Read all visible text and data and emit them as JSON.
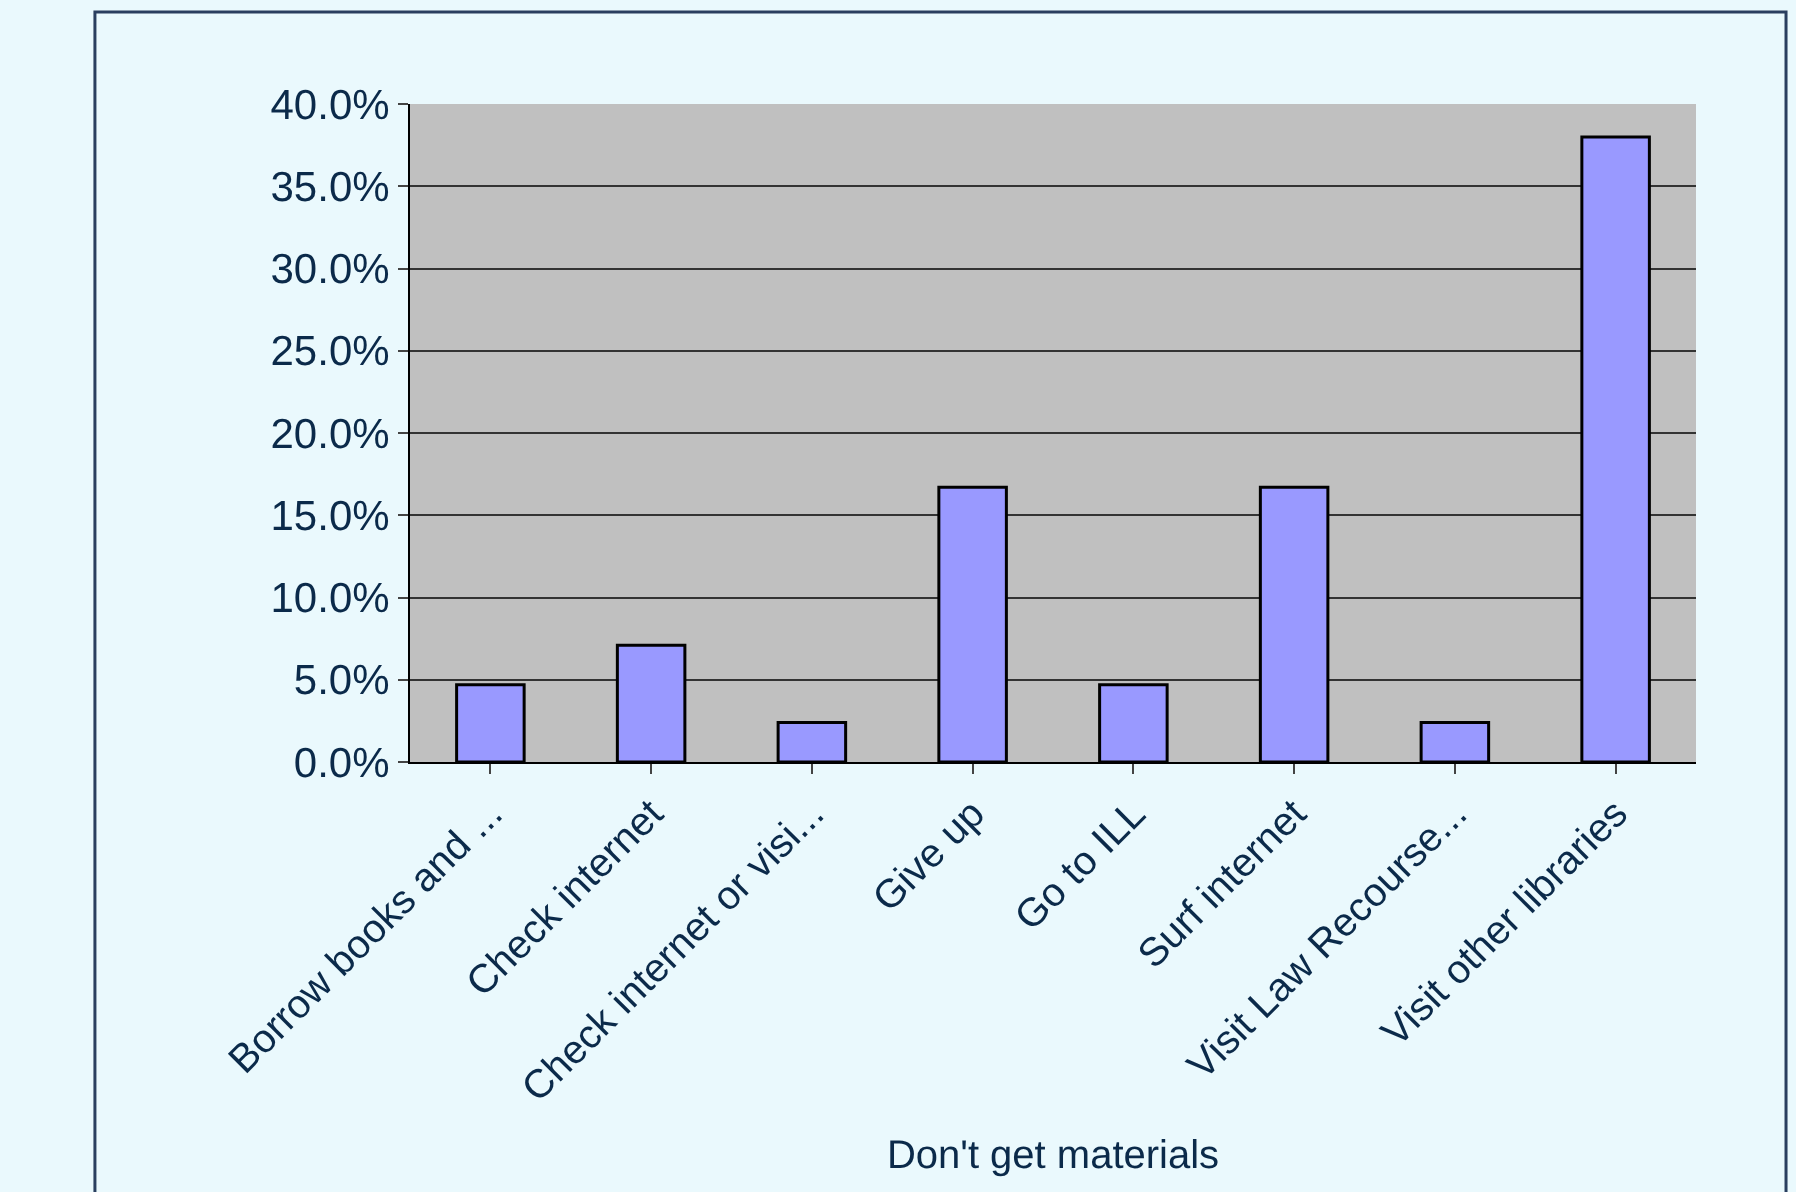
{
  "chart_data": {
    "type": "bar",
    "xlabel": "Don't get materials",
    "categories": [
      "Borrow books and ...",
      "Check internet",
      "Check internet or visi...",
      "Give up",
      "Go to ILL",
      "Surf internet",
      "Visit Law Recourse...",
      "Visit other libraries"
    ],
    "values": [
      4.7,
      7.1,
      2.4,
      16.7,
      4.7,
      16.7,
      2.4,
      38.0
    ],
    "color": "#9999ff",
    "ylim": [
      0,
      40
    ],
    "yticks": [
      {
        "value": 0,
        "label": "0.0%"
      },
      {
        "value": 5,
        "label": "5.0%"
      },
      {
        "value": 10,
        "label": "10.0%"
      },
      {
        "value": 15,
        "label": "15.0%"
      },
      {
        "value": 20,
        "label": "20.0%"
      },
      {
        "value": 25,
        "label": "25.0%"
      },
      {
        "value": 30,
        "label": "30.0%"
      },
      {
        "value": 35,
        "label": "35.0%"
      },
      {
        "value": 40,
        "label": "40.0%"
      }
    ],
    "grid": "y",
    "legend": false
  }
}
